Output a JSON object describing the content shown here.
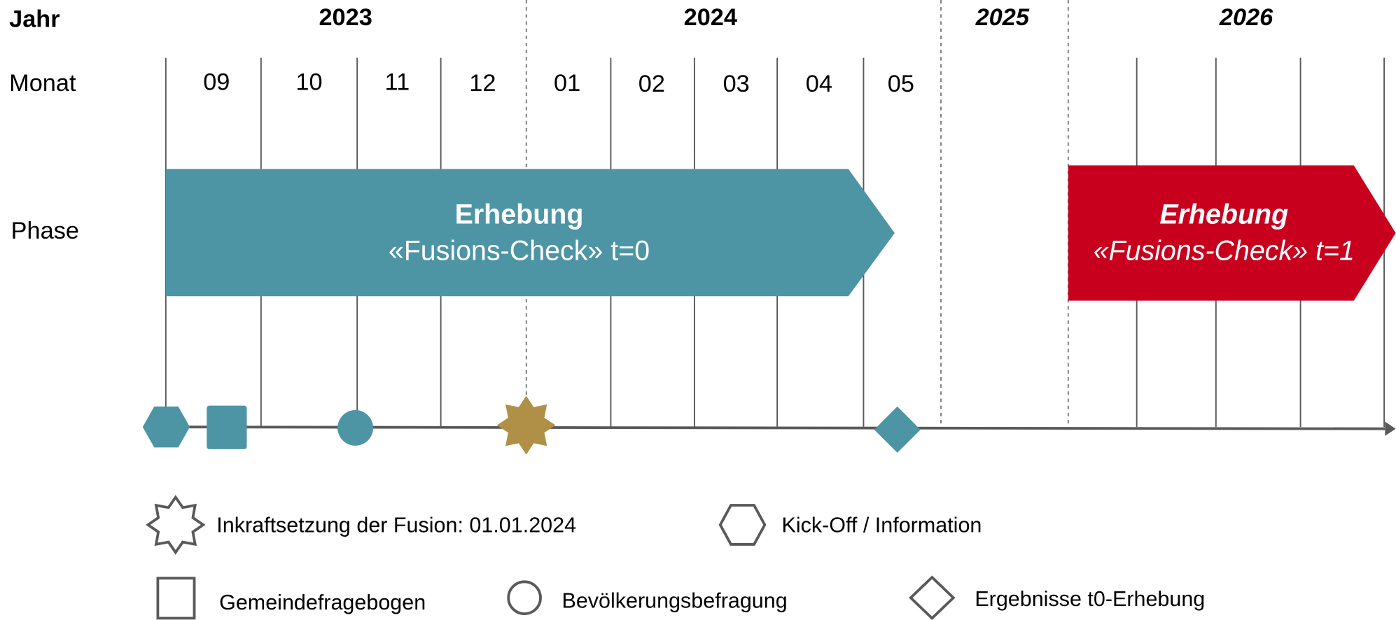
{
  "rows": {
    "year": "Jahr",
    "month": "Monat",
    "phase": "Phase"
  },
  "years": [
    "2023",
    "2024",
    "2025",
    "2026"
  ],
  "months": [
    "09",
    "10",
    "11",
    "12",
    "01",
    "02",
    "03",
    "04",
    "05"
  ],
  "phases": [
    {
      "title": "Erhebung",
      "subtitle": "«Fusions-Check» t=0"
    },
    {
      "title": "Erhebung",
      "subtitle": "«Fusions-Check» t=1"
    }
  ],
  "legend": [
    {
      "label": "Inkraftsetzung der Fusion: 01.01.2024"
    },
    {
      "label": "Kick-Off / Information"
    },
    {
      "label": "Gemeindefragebogen"
    },
    {
      "label": "Bevölkerungsbefragung"
    },
    {
      "label": "Ergebnisse t0-Erhebung"
    }
  ]
}
